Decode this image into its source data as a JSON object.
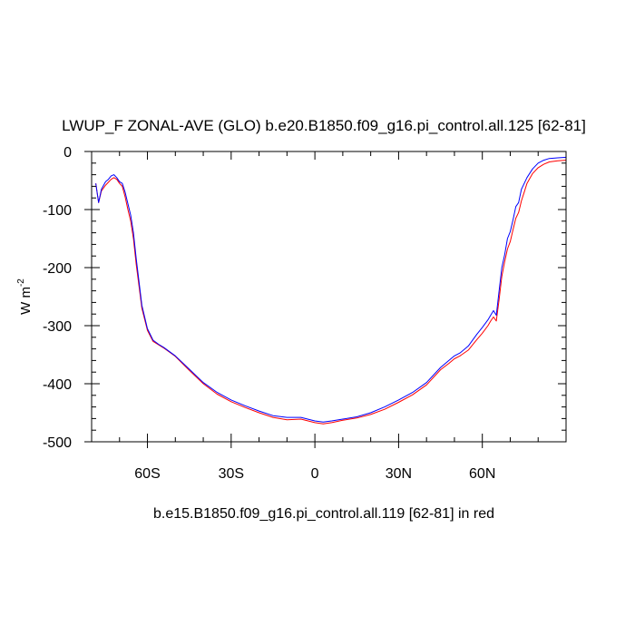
{
  "chart_data": {
    "type": "line",
    "title": "LWUP_F ZONAL-AVE (GLO) b.e20.B1850.f09_g16.pi_control.all.125 [62-81]",
    "xlabel": "b.e15.B1850.f09_g16.pi_control.all.119 [62-81] in red",
    "ylabel": "W m",
    "ylabel_superscript": "-2",
    "xlim": [
      -80,
      90
    ],
    "ylim": [
      -500,
      0
    ],
    "x_ticks": [
      {
        "value": -60,
        "label": "60S"
      },
      {
        "value": -30,
        "label": "30S"
      },
      {
        "value": 0,
        "label": "0"
      },
      {
        "value": 30,
        "label": "30N"
      },
      {
        "value": 60,
        "label": "60N"
      }
    ],
    "y_ticks": [
      {
        "value": 0,
        "label": "0"
      },
      {
        "value": -100,
        "label": "-100"
      },
      {
        "value": -200,
        "label": "-200"
      },
      {
        "value": -300,
        "label": "-300"
      },
      {
        "value": -400,
        "label": "-400"
      },
      {
        "value": -500,
        "label": "-500"
      }
    ],
    "grid": false,
    "legend": "none",
    "series": [
      {
        "color": "#0000ff",
        "x": [
          -78.5,
          -77.5,
          -76.5,
          -75,
          -74,
          -73,
          -72,
          -71,
          -70,
          -69,
          -68,
          -67,
          -66,
          -65,
          -64,
          -62,
          -60,
          -58,
          -56,
          -54,
          -52,
          -50,
          -45,
          -40,
          -35,
          -30,
          -25,
          -20,
          -15,
          -10,
          -5,
          0,
          3,
          6,
          10,
          15,
          20,
          25,
          30,
          35,
          40,
          45,
          48,
          50,
          52,
          55,
          58,
          60,
          62,
          63,
          64,
          65,
          66,
          67,
          68,
          69,
          70,
          71,
          72,
          73,
          74,
          75,
          76,
          78,
          80,
          82,
          84,
          87,
          90
        ],
        "y": [
          -55,
          -88,
          -65,
          -52,
          -48,
          -42,
          -40,
          -45,
          -52,
          -55,
          -70,
          -90,
          -110,
          -140,
          -185,
          -265,
          -305,
          -325,
          -332,
          -338,
          -345,
          -352,
          -375,
          -398,
          -415,
          -428,
          -438,
          -447,
          -455,
          -458,
          -458,
          -464,
          -466,
          -464,
          -461,
          -457,
          -450,
          -440,
          -428,
          -415,
          -398,
          -372,
          -360,
          -352,
          -347,
          -335,
          -315,
          -303,
          -290,
          -282,
          -274,
          -282,
          -240,
          -200,
          -178,
          -150,
          -138,
          -118,
          -95,
          -88,
          -65,
          -55,
          -45,
          -30,
          -20,
          -15,
          -12,
          -11,
          -10
        ]
      },
      {
        "color": "#ff0000",
        "x": [
          -78.5,
          -77.5,
          -76.5,
          -75,
          -74,
          -73,
          -72,
          -71,
          -70,
          -69,
          -68,
          -67,
          -66,
          -65,
          -64,
          -62,
          -60,
          -58,
          -56,
          -54,
          -52,
          -50,
          -45,
          -40,
          -35,
          -30,
          -25,
          -20,
          -15,
          -10,
          -5,
          0,
          3,
          6,
          10,
          15,
          20,
          25,
          30,
          35,
          40,
          45,
          48,
          50,
          52,
          55,
          58,
          60,
          62,
          63,
          64,
          65,
          66,
          67,
          68,
          69,
          70,
          71,
          72,
          73,
          74,
          75,
          76,
          78,
          80,
          82,
          84,
          87,
          90
        ],
        "y": [
          -55,
          -88,
          -68,
          -58,
          -53,
          -48,
          -45,
          -48,
          -55,
          -60,
          -78,
          -100,
          -120,
          -150,
          -195,
          -270,
          -308,
          -327,
          -333,
          -339,
          -346,
          -353,
          -377,
          -400,
          -418,
          -431,
          -441,
          -450,
          -458,
          -462,
          -461,
          -467,
          -469,
          -467,
          -463,
          -459,
          -453,
          -444,
          -432,
          -419,
          -402,
          -376,
          -365,
          -357,
          -352,
          -342,
          -324,
          -313,
          -300,
          -292,
          -285,
          -292,
          -255,
          -215,
          -190,
          -168,
          -155,
          -135,
          -115,
          -105,
          -85,
          -70,
          -55,
          -38,
          -28,
          -22,
          -18,
          -16,
          -15
        ]
      }
    ]
  }
}
